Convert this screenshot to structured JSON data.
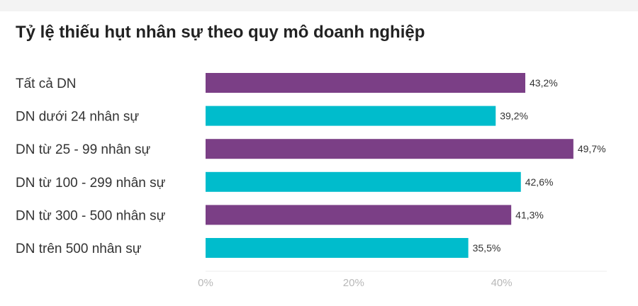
{
  "chart_data": {
    "type": "bar",
    "orientation": "horizontal",
    "title": "Tỷ lệ thiếu hụt nhân sự theo quy mô doanh nghiệp",
    "categories": [
      "Tất cả DN",
      "DN dưới 24 nhân sự",
      "DN từ 25 - 99 nhân sự",
      "DN từ 100 - 299 nhân sự",
      "DN từ 300 - 500 nhân sự",
      "DN trên 500 nhân sự"
    ],
    "values": [
      43.2,
      39.2,
      49.7,
      42.6,
      41.3,
      35.5
    ],
    "value_labels": [
      "43,2%",
      "39,2%",
      "49,7%",
      "42,6%",
      "41,3%",
      "35,5%"
    ],
    "bar_colors": [
      "#7b3f86",
      "#00bccc",
      "#7b3f86",
      "#00bccc",
      "#7b3f86",
      "#00bccc"
    ],
    "xlim": [
      0,
      50
    ],
    "x_ticks": [
      0,
      20,
      40
    ],
    "x_tick_labels": [
      "0%",
      "20%",
      "40%"
    ],
    "grid": false,
    "legend": "none"
  }
}
